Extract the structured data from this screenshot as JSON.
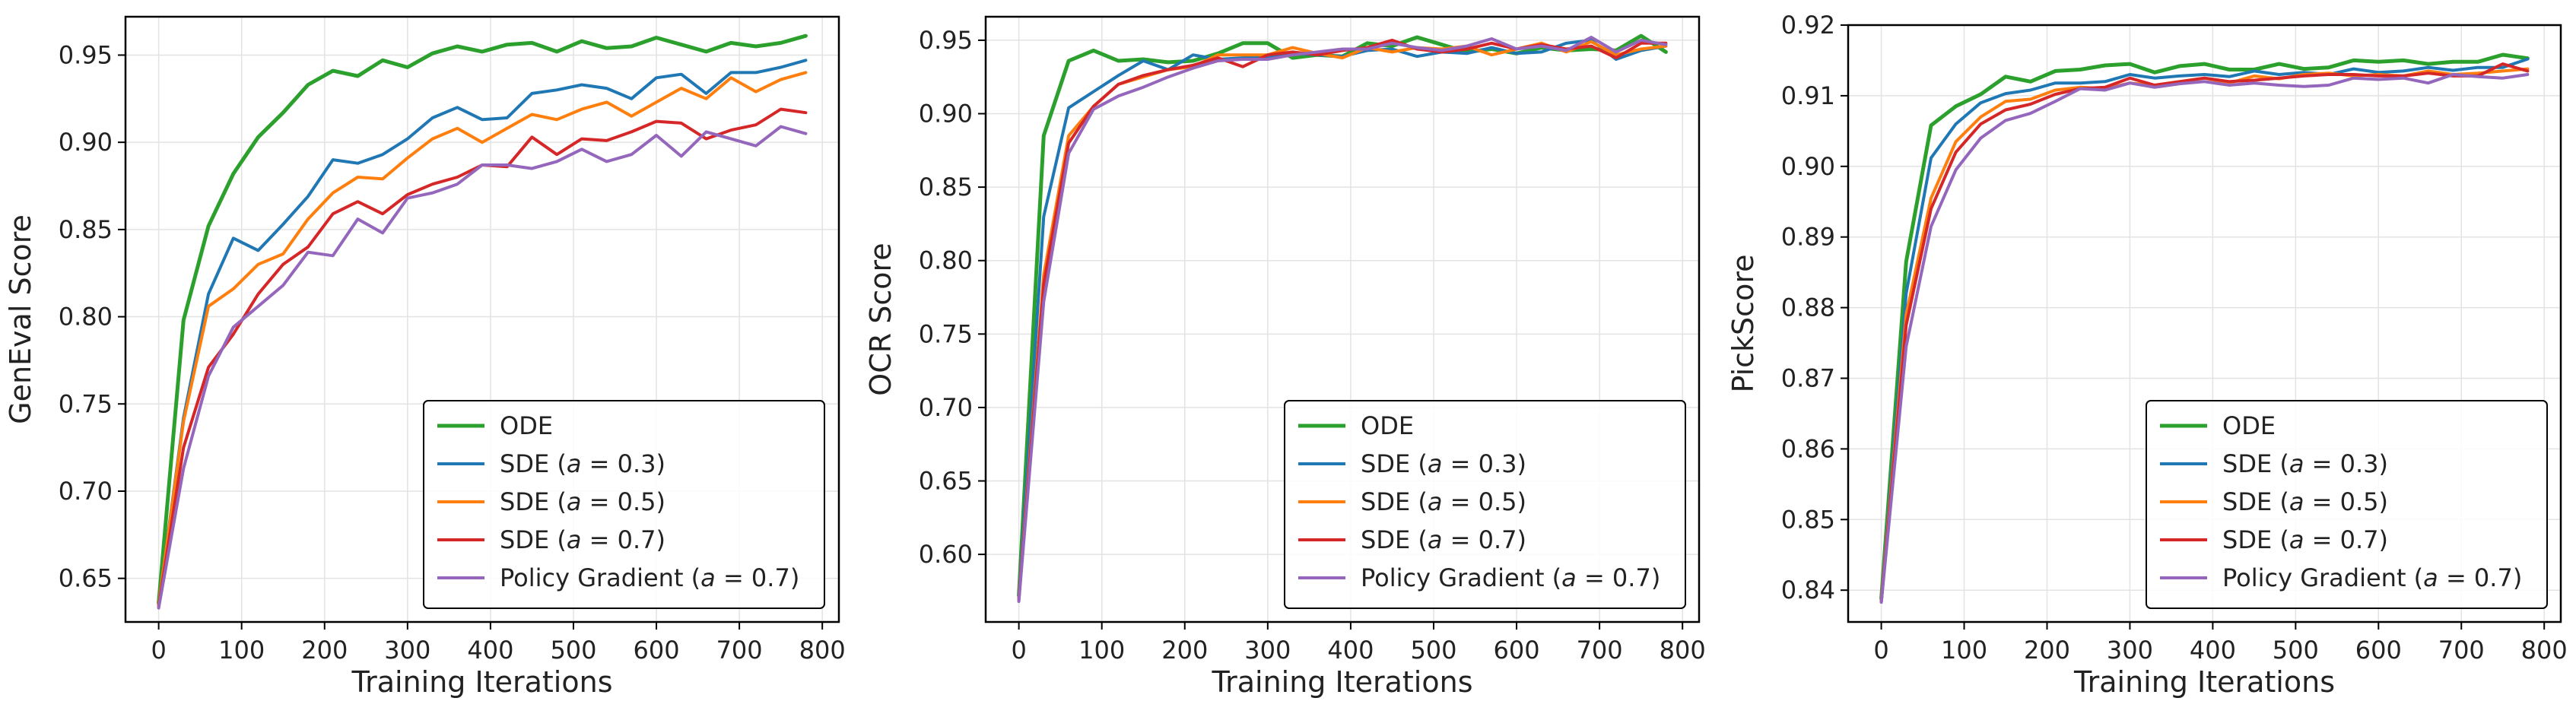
{
  "chart_data": [
    {
      "type": "line",
      "xlabel": "Training Iterations",
      "ylabel": "GenEval Score",
      "xlim": [
        -40,
        820
      ],
      "ylim": [
        0.625,
        0.972
      ],
      "xticks": [
        0,
        100,
        200,
        300,
        400,
        500,
        600,
        700,
        800
      ],
      "yticks": [
        0.65,
        0.7,
        0.75,
        0.8,
        0.85,
        0.9,
        0.95
      ],
      "grid": true,
      "legend_position": "lower-right",
      "x": [
        0,
        30,
        60,
        90,
        120,
        150,
        180,
        210,
        240,
        270,
        300,
        330,
        360,
        390,
        420,
        450,
        480,
        510,
        540,
        570,
        600,
        630,
        660,
        690,
        720,
        750,
        780
      ],
      "series": [
        {
          "name": "ODE",
          "color": "#2ca02c",
          "values": [
            0.636,
            0.798,
            0.852,
            0.882,
            0.903,
            0.917,
            0.933,
            0.941,
            0.938,
            0.947,
            0.943,
            0.951,
            0.955,
            0.952,
            0.956,
            0.957,
            0.952,
            0.958,
            0.954,
            0.955,
            0.96,
            0.956,
            0.952,
            0.957,
            0.955,
            0.957,
            0.961
          ]
        },
        {
          "name": "SDE (a = 0.3)",
          "color": "#1f77b4",
          "values": [
            0.635,
            0.742,
            0.813,
            0.845,
            0.838,
            0.853,
            0.869,
            0.89,
            0.888,
            0.893,
            0.902,
            0.914,
            0.92,
            0.913,
            0.914,
            0.928,
            0.93,
            0.933,
            0.931,
            0.925,
            0.937,
            0.939,
            0.928,
            0.94,
            0.94,
            0.943,
            0.947
          ]
        },
        {
          "name": "SDE (a = 0.5)",
          "color": "#ff7f0e",
          "values": [
            0.635,
            0.74,
            0.806,
            0.816,
            0.83,
            0.836,
            0.856,
            0.871,
            0.88,
            0.879,
            0.891,
            0.902,
            0.908,
            0.9,
            0.908,
            0.916,
            0.913,
            0.919,
            0.923,
            0.915,
            0.923,
            0.931,
            0.925,
            0.937,
            0.929,
            0.936,
            0.94
          ]
        },
        {
          "name": "SDE (a = 0.7)",
          "color": "#d62728",
          "values": [
            0.634,
            0.725,
            0.771,
            0.79,
            0.813,
            0.83,
            0.84,
            0.859,
            0.866,
            0.859,
            0.87,
            0.876,
            0.88,
            0.887,
            0.886,
            0.903,
            0.893,
            0.902,
            0.901,
            0.906,
            0.912,
            0.911,
            0.902,
            0.907,
            0.91,
            0.919,
            0.917
          ]
        },
        {
          "name": "Policy Gradient (a = 0.7)",
          "color": "#9467bd",
          "values": [
            0.633,
            0.713,
            0.766,
            0.794,
            0.806,
            0.818,
            0.837,
            0.835,
            0.856,
            0.848,
            0.868,
            0.871,
            0.876,
            0.887,
            0.887,
            0.885,
            0.889,
            0.896,
            0.889,
            0.893,
            0.904,
            0.892,
            0.906,
            0.902,
            0.898,
            0.909,
            0.905
          ]
        }
      ]
    },
    {
      "type": "line",
      "xlabel": "Training Iterations",
      "ylabel": "OCR Score",
      "xlim": [
        -40,
        820
      ],
      "ylim": [
        0.554,
        0.966
      ],
      "xticks": [
        0,
        100,
        200,
        300,
        400,
        500,
        600,
        700,
        800
      ],
      "yticks": [
        0.6,
        0.65,
        0.7,
        0.75,
        0.8,
        0.85,
        0.9,
        0.95
      ],
      "grid": true,
      "legend_position": "lower-right",
      "x": [
        0,
        30,
        60,
        90,
        120,
        150,
        180,
        210,
        240,
        270,
        300,
        330,
        360,
        390,
        420,
        450,
        480,
        510,
        540,
        570,
        600,
        630,
        660,
        690,
        720,
        750,
        780
      ],
      "series": [
        {
          "name": "ODE",
          "color": "#2ca02c",
          "values": [
            0.572,
            0.885,
            0.936,
            0.943,
            0.936,
            0.937,
            0.935,
            0.936,
            0.941,
            0.948,
            0.948,
            0.938,
            0.94,
            0.939,
            0.948,
            0.946,
            0.952,
            0.947,
            0.942,
            0.944,
            0.941,
            0.945,
            0.943,
            0.944,
            0.943,
            0.953,
            0.942
          ]
        },
        {
          "name": "SDE (a = 0.3)",
          "color": "#1f77b4",
          "values": [
            0.571,
            0.83,
            0.904,
            0.915,
            0.926,
            0.936,
            0.93,
            0.94,
            0.937,
            0.938,
            0.939,
            0.941,
            0.94,
            0.939,
            0.943,
            0.944,
            0.939,
            0.942,
            0.941,
            0.945,
            0.941,
            0.942,
            0.948,
            0.95,
            0.937,
            0.943,
            0.946
          ]
        },
        {
          "name": "SDE (a = 0.5)",
          "color": "#ff7f0e",
          "values": [
            0.57,
            0.79,
            0.885,
            0.905,
            0.92,
            0.925,
            0.93,
            0.932,
            0.94,
            0.94,
            0.94,
            0.945,
            0.941,
            0.938,
            0.945,
            0.942,
            0.945,
            0.944,
            0.946,
            0.94,
            0.944,
            0.948,
            0.942,
            0.949,
            0.94,
            0.944,
            0.946
          ]
        },
        {
          "name": "SDE (a = 0.7)",
          "color": "#d62728",
          "values": [
            0.569,
            0.784,
            0.88,
            0.905,
            0.92,
            0.926,
            0.93,
            0.933,
            0.938,
            0.932,
            0.94,
            0.942,
            0.94,
            0.943,
            0.945,
            0.95,
            0.944,
            0.942,
            0.944,
            0.948,
            0.944,
            0.947,
            0.944,
            0.946,
            0.938,
            0.948,
            0.948
          ]
        },
        {
          "name": "Policy Gradient (a = 0.7)",
          "color": "#9467bd",
          "values": [
            0.568,
            0.772,
            0.873,
            0.903,
            0.912,
            0.918,
            0.925,
            0.931,
            0.936,
            0.937,
            0.937,
            0.94,
            0.942,
            0.944,
            0.944,
            0.948,
            0.945,
            0.943,
            0.946,
            0.951,
            0.944,
            0.946,
            0.943,
            0.952,
            0.942,
            0.95,
            0.947
          ]
        }
      ]
    },
    {
      "type": "line",
      "xlabel": "Training Iterations",
      "ylabel": "PickScore",
      "xlim": [
        -40,
        820
      ],
      "ylim": [
        0.8355,
        0.92
      ],
      "xticks": [
        0,
        100,
        200,
        300,
        400,
        500,
        600,
        700,
        800
      ],
      "yticks": [
        0.84,
        0.85,
        0.86,
        0.87,
        0.88,
        0.89,
        0.9,
        0.91,
        0.92
      ],
      "grid": true,
      "legend_position": "lower-right",
      "x": [
        0,
        30,
        60,
        90,
        120,
        150,
        180,
        210,
        240,
        270,
        300,
        330,
        360,
        390,
        420,
        450,
        480,
        510,
        540,
        570,
        600,
        630,
        660,
        690,
        720,
        750,
        780
      ],
      "series": [
        {
          "name": "ODE",
          "color": "#2ca02c",
          "values": [
            0.8388,
            0.8865,
            0.9058,
            0.9085,
            0.9102,
            0.9127,
            0.912,
            0.9135,
            0.9137,
            0.9143,
            0.9145,
            0.9133,
            0.9142,
            0.9145,
            0.9137,
            0.9137,
            0.9145,
            0.9138,
            0.914,
            0.915,
            0.9148,
            0.915,
            0.9145,
            0.9148,
            0.9148,
            0.9158,
            0.9153
          ]
        },
        {
          "name": "SDE (a = 0.3)",
          "color": "#1f77b4",
          "values": [
            0.8385,
            0.882,
            0.9012,
            0.906,
            0.909,
            0.9103,
            0.9108,
            0.9118,
            0.9118,
            0.912,
            0.913,
            0.9125,
            0.9128,
            0.913,
            0.9127,
            0.9135,
            0.913,
            0.9133,
            0.913,
            0.9138,
            0.9133,
            0.9135,
            0.914,
            0.9136,
            0.914,
            0.914,
            0.9152
          ]
        },
        {
          "name": "SDE (a = 0.5)",
          "color": "#ff7f0e",
          "values": [
            0.8385,
            0.879,
            0.8955,
            0.9035,
            0.907,
            0.9092,
            0.9095,
            0.9108,
            0.9112,
            0.911,
            0.9118,
            0.9115,
            0.912,
            0.9125,
            0.9118,
            0.9128,
            0.9124,
            0.913,
            0.9132,
            0.9128,
            0.913,
            0.9128,
            0.9135,
            0.913,
            0.9132,
            0.9135,
            0.9138
          ]
        },
        {
          "name": "SDE (a = 0.7)",
          "color": "#d62728",
          "values": [
            0.8383,
            0.8775,
            0.894,
            0.902,
            0.906,
            0.908,
            0.9088,
            0.9102,
            0.911,
            0.9112,
            0.9125,
            0.9115,
            0.912,
            0.9125,
            0.912,
            0.9122,
            0.9125,
            0.9128,
            0.913,
            0.913,
            0.9128,
            0.9128,
            0.9132,
            0.9128,
            0.9128,
            0.9145,
            0.9135
          ]
        },
        {
          "name": "Policy Gradient (a = 0.7)",
          "color": "#9467bd",
          "values": [
            0.8383,
            0.8745,
            0.8915,
            0.8995,
            0.904,
            0.9065,
            0.9075,
            0.9092,
            0.911,
            0.9108,
            0.9118,
            0.9112,
            0.9117,
            0.912,
            0.9115,
            0.9118,
            0.9115,
            0.9113,
            0.9115,
            0.9125,
            0.9123,
            0.9125,
            0.9118,
            0.913,
            0.9127,
            0.9125,
            0.913
          ]
        }
      ]
    }
  ]
}
